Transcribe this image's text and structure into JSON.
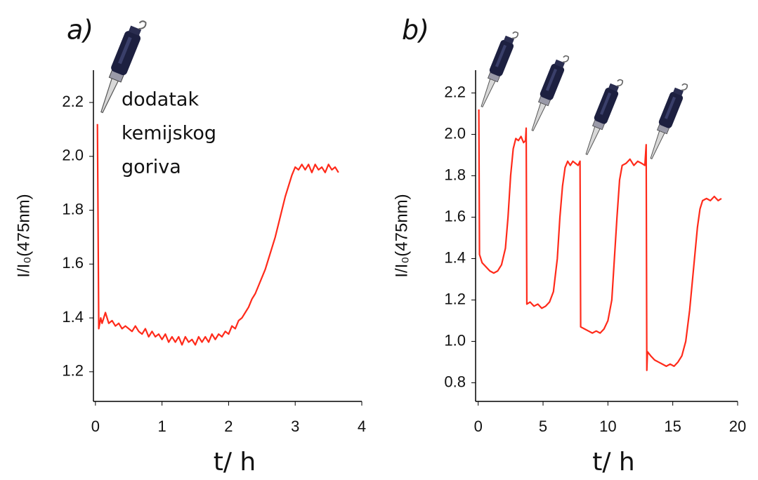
{
  "chart_data": [
    {
      "type": "line",
      "title": "a)",
      "ylabel": "I/I₀(475nm)",
      "xlabel": "t/ h",
      "annotation": [
        "dodatak",
        "kemijskog",
        "goriva"
      ],
      "xlim": [
        -0.03,
        4.0
      ],
      "xticks": [
        0,
        1,
        2,
        3,
        4
      ],
      "ylim": [
        1.09,
        2.32
      ],
      "yticks": [
        {
          "value": 1.2,
          "label": "1.2"
        },
        {
          "value": 1.4,
          "label": "1.4"
        },
        {
          "value": 1.6,
          "label": "1.6"
        },
        {
          "value": 1.8,
          "label": "1.8"
        },
        {
          "value": 2,
          "label": "2.0"
        },
        {
          "value": 2.2,
          "label": "2.2"
        }
      ],
      "x": [
        0.03,
        0.05,
        0.08,
        0.1,
        0.15,
        0.2,
        0.25,
        0.3,
        0.35,
        0.4,
        0.45,
        0.5,
        0.55,
        0.6,
        0.65,
        0.7,
        0.75,
        0.8,
        0.85,
        0.9,
        0.95,
        1.0,
        1.05,
        1.1,
        1.15,
        1.2,
        1.25,
        1.3,
        1.35,
        1.4,
        1.45,
        1.5,
        1.55,
        1.6,
        1.65,
        1.7,
        1.75,
        1.8,
        1.85,
        1.9,
        1.95,
        2.0,
        2.05,
        2.1,
        2.15,
        2.2,
        2.25,
        2.3,
        2.35,
        2.4,
        2.45,
        2.5,
        2.55,
        2.6,
        2.65,
        2.7,
        2.75,
        2.8,
        2.85,
        2.9,
        2.95,
        3.0,
        3.05,
        3.1,
        3.15,
        3.2,
        3.25,
        3.3,
        3.35,
        3.4,
        3.45,
        3.5,
        3.55,
        3.6,
        3.65
      ],
      "series": [
        {
          "color": "#ff2a1a",
          "values": [
            2.12,
            1.36,
            1.4,
            1.38,
            1.42,
            1.38,
            1.39,
            1.37,
            1.38,
            1.36,
            1.37,
            1.36,
            1.35,
            1.37,
            1.35,
            1.34,
            1.36,
            1.33,
            1.35,
            1.33,
            1.34,
            1.32,
            1.34,
            1.31,
            1.33,
            1.31,
            1.33,
            1.3,
            1.33,
            1.31,
            1.32,
            1.3,
            1.33,
            1.31,
            1.33,
            1.31,
            1.34,
            1.32,
            1.34,
            1.33,
            1.35,
            1.34,
            1.37,
            1.36,
            1.39,
            1.4,
            1.42,
            1.44,
            1.47,
            1.49,
            1.52,
            1.55,
            1.58,
            1.62,
            1.66,
            1.7,
            1.75,
            1.8,
            1.85,
            1.89,
            1.93,
            1.96,
            1.95,
            1.97,
            1.95,
            1.97,
            1.94,
            1.97,
            1.95,
            1.96,
            1.94,
            1.97,
            1.95,
            1.96,
            1.94
          ]
        }
      ]
    },
    {
      "type": "line",
      "title": "b)",
      "ylabel": "I/I₀(475nm)",
      "xlabel": "t/ h",
      "xlim": [
        -0.2,
        20
      ],
      "xticks": [
        0,
        5,
        10,
        15,
        20
      ],
      "ylim": [
        0.71,
        2.31
      ],
      "yticks": [
        {
          "value": 0.8,
          "label": "0.8"
        },
        {
          "value": 1,
          "label": "1.0"
        },
        {
          "value": 1.2,
          "label": "1.2"
        },
        {
          "value": 1.4,
          "label": "1.4"
        },
        {
          "value": 1.6,
          "label": "1.6"
        },
        {
          "value": 1.8,
          "label": "1.8"
        },
        {
          "value": 2,
          "label": "2.0"
        },
        {
          "value": 2.2,
          "label": "2.2"
        }
      ],
      "x": [
        0.05,
        0.1,
        0.3,
        0.6,
        0.9,
        1.2,
        1.5,
        1.8,
        2.1,
        2.3,
        2.5,
        2.7,
        2.9,
        3.1,
        3.3,
        3.5,
        3.65,
        3.7,
        3.75,
        4.0,
        4.3,
        4.6,
        4.9,
        5.2,
        5.5,
        5.8,
        6.1,
        6.3,
        6.5,
        6.7,
        6.9,
        7.1,
        7.3,
        7.5,
        7.7,
        7.85,
        7.9,
        8.2,
        8.5,
        8.8,
        9.1,
        9.4,
        9.7,
        10.0,
        10.3,
        10.5,
        10.7,
        10.9,
        11.1,
        11.4,
        11.7,
        12.0,
        12.3,
        12.6,
        12.85,
        12.95,
        13.0,
        13.05,
        13.3,
        13.6,
        13.9,
        14.2,
        14.5,
        14.8,
        15.1,
        15.4,
        15.7,
        16.0,
        16.3,
        16.6,
        16.9,
        17.1,
        17.3,
        17.6,
        17.9,
        18.2,
        18.5,
        18.75
      ],
      "series": [
        {
          "color": "#ff2a1a",
          "values": [
            2.12,
            1.42,
            1.38,
            1.36,
            1.34,
            1.33,
            1.34,
            1.37,
            1.45,
            1.6,
            1.8,
            1.93,
            1.98,
            1.97,
            1.99,
            1.96,
            1.97,
            2.03,
            1.18,
            1.19,
            1.17,
            1.18,
            1.16,
            1.17,
            1.19,
            1.24,
            1.4,
            1.6,
            1.75,
            1.84,
            1.87,
            1.85,
            1.87,
            1.86,
            1.85,
            1.87,
            1.07,
            1.06,
            1.05,
            1.04,
            1.05,
            1.04,
            1.06,
            1.1,
            1.2,
            1.4,
            1.6,
            1.78,
            1.85,
            1.86,
            1.88,
            1.85,
            1.87,
            1.86,
            1.85,
            1.95,
            0.86,
            0.95,
            0.93,
            0.91,
            0.9,
            0.89,
            0.88,
            0.89,
            0.88,
            0.9,
            0.93,
            1.0,
            1.15,
            1.35,
            1.55,
            1.64,
            1.68,
            1.69,
            1.68,
            1.7,
            1.68,
            1.69
          ]
        }
      ]
    }
  ]
}
